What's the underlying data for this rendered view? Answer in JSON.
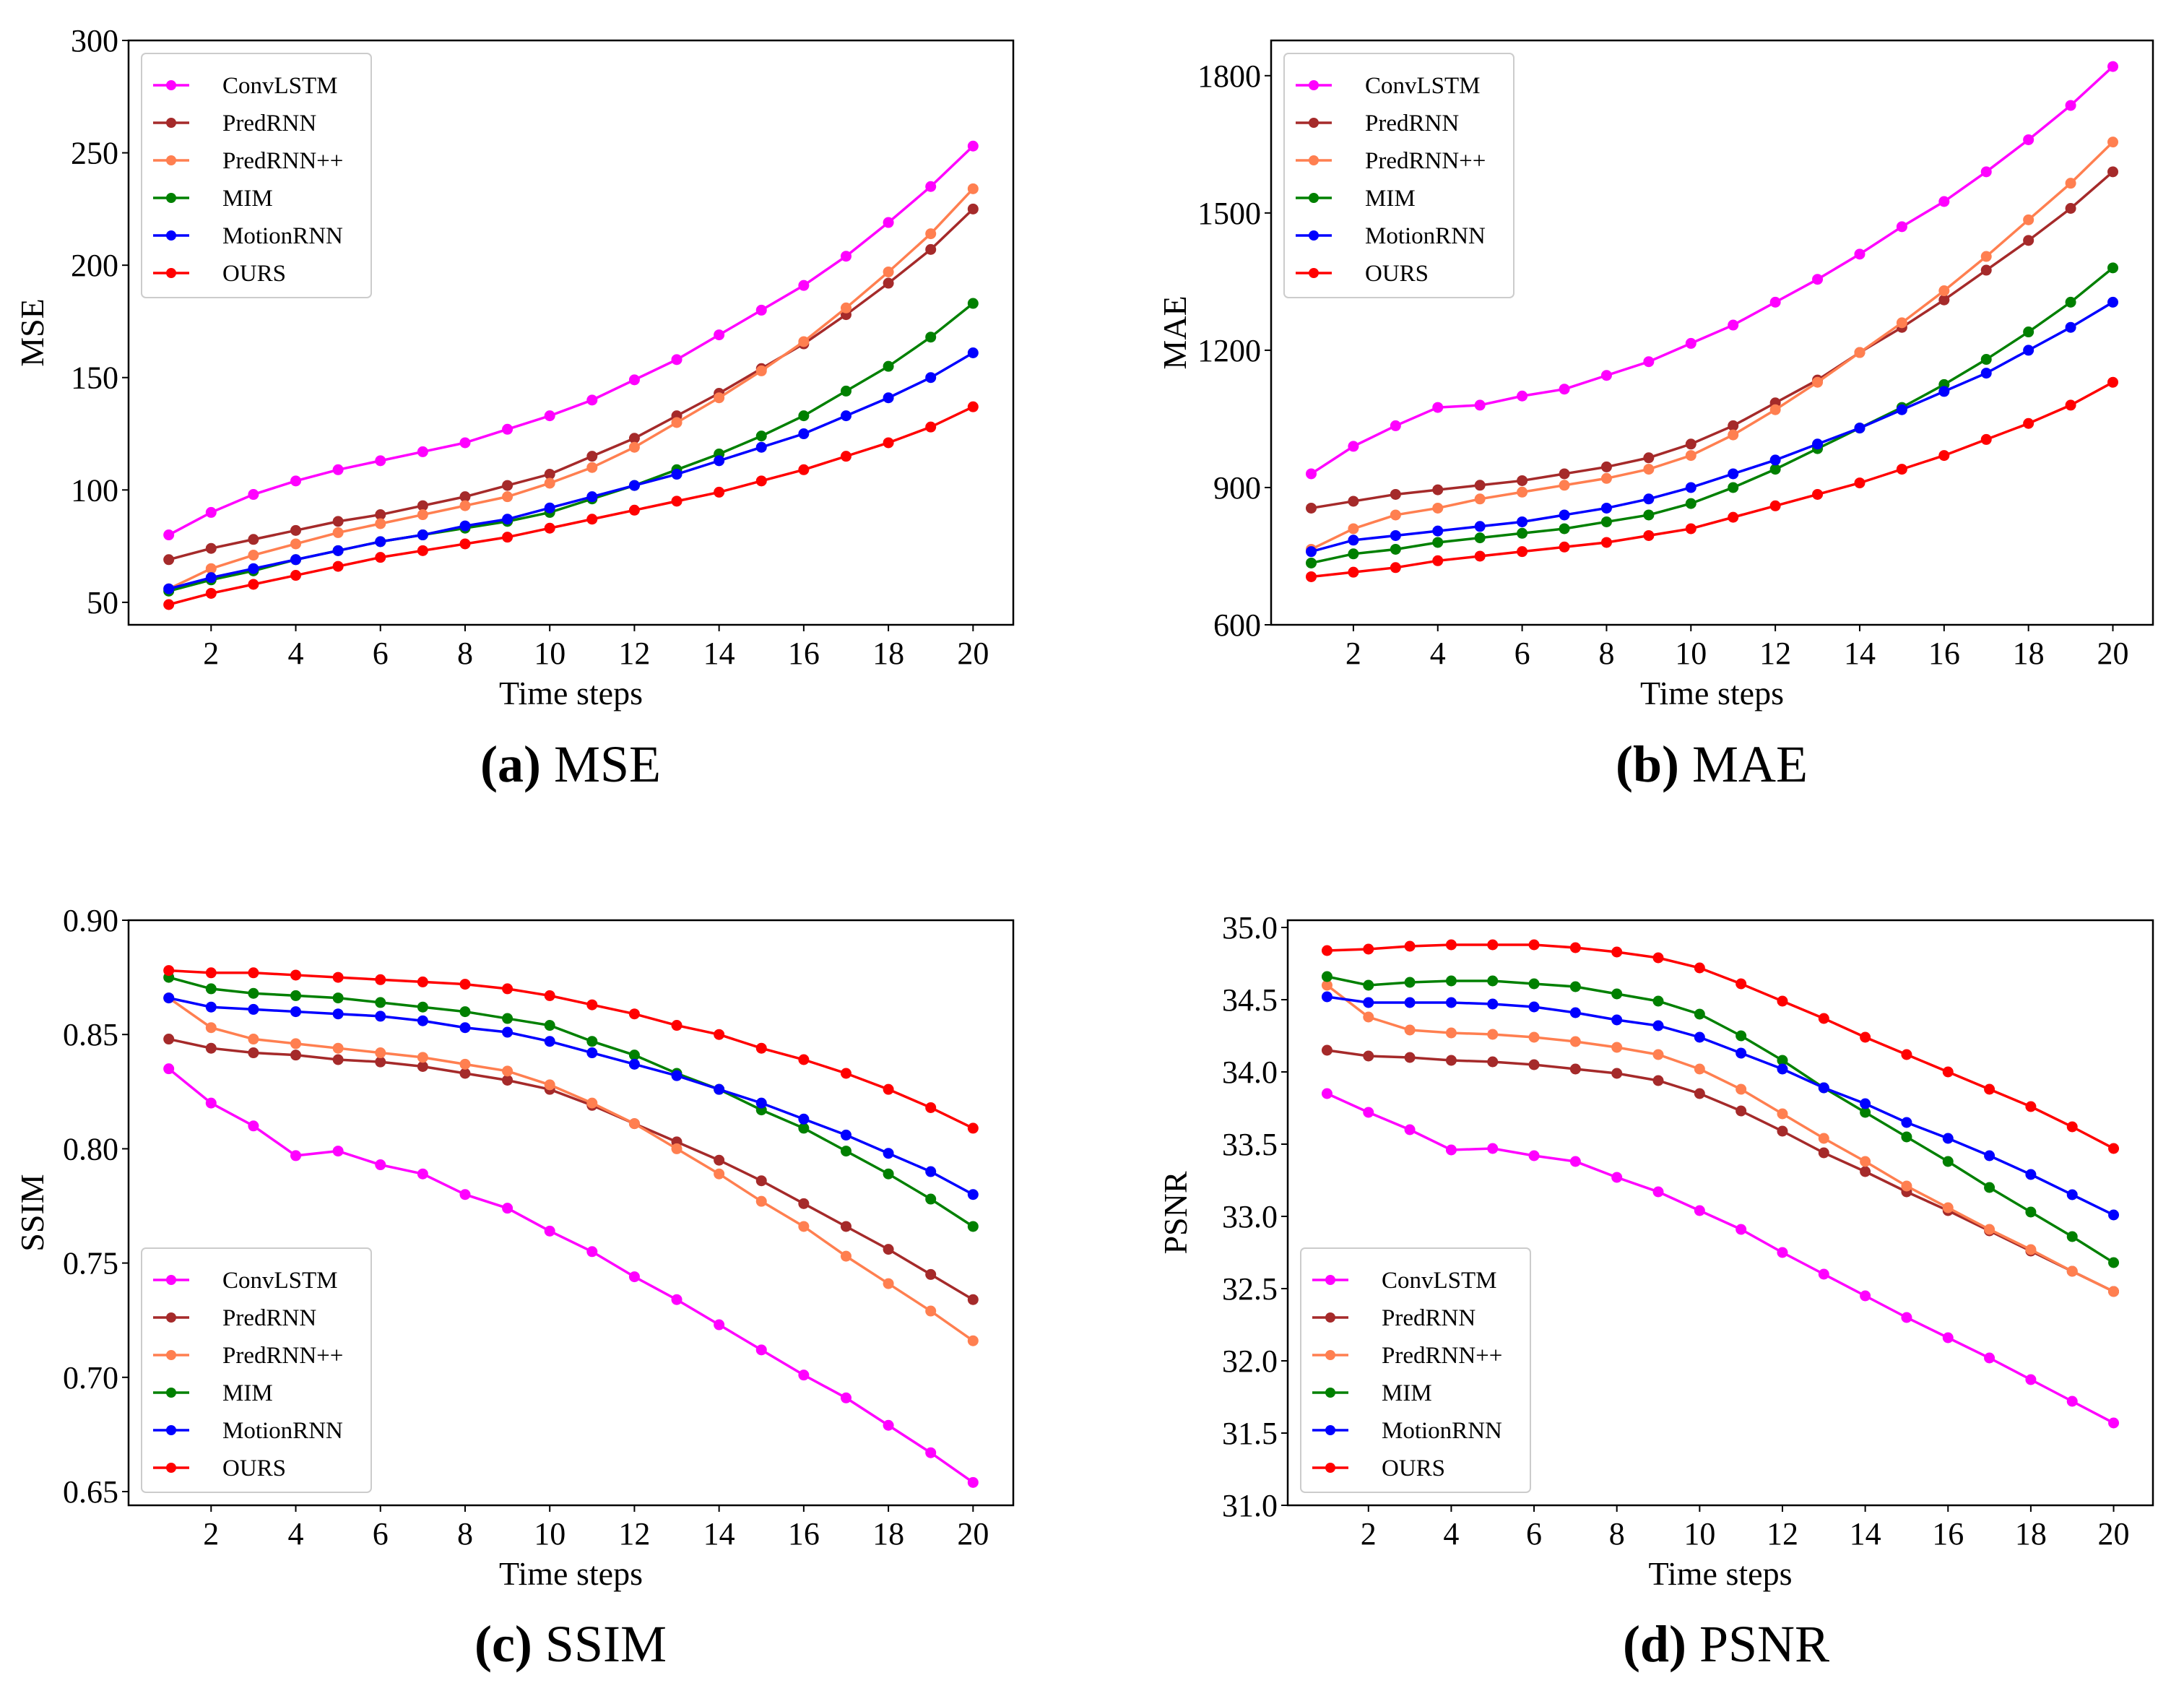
{
  "series_names": [
    "ConvLSTM",
    "PredRNN",
    "PredRNN++",
    "MIM",
    "MotionRNN",
    "OURS"
  ],
  "series_colors": [
    "#ff00ff",
    "#a52a2a",
    "#ff7f50",
    "#008000",
    "#0000ff",
    "#ff0000"
  ],
  "chart_data": [
    {
      "type": "line",
      "caption_letter": "(a)",
      "caption_text": "MSE",
      "xlabel": "Time steps",
      "ylabel": "MSE",
      "x": [
        1,
        2,
        3,
        4,
        5,
        6,
        7,
        8,
        9,
        10,
        11,
        12,
        13,
        14,
        15,
        16,
        17,
        18,
        19,
        20
      ],
      "xticks": [
        2,
        4,
        6,
        8,
        10,
        12,
        14,
        16,
        18,
        20
      ],
      "yticks": [
        50,
        100,
        150,
        200,
        250,
        300
      ],
      "ytick_labels": [
        "50",
        "100",
        "150",
        "200",
        "250",
        "300"
      ],
      "ylim": [
        40,
        300
      ],
      "xlim": [
        0.05,
        20.95
      ],
      "legend": "top-left",
      "grid": false,
      "series": [
        {
          "name": "ConvLSTM",
          "values": [
            80,
            90,
            98,
            104,
            109,
            113,
            117,
            121,
            127,
            133,
            140,
            149,
            158,
            169,
            180,
            191,
            204,
            219,
            235,
            253
          ]
        },
        {
          "name": "PredRNN",
          "values": [
            69,
            74,
            78,
            82,
            86,
            89,
            93,
            97,
            102,
            107,
            115,
            123,
            133,
            143,
            154,
            165,
            178,
            192,
            207,
            225
          ]
        },
        {
          "name": "PredRNN++",
          "values": [
            56,
            65,
            71,
            76,
            81,
            85,
            89,
            93,
            97,
            103,
            110,
            119,
            130,
            141,
            153,
            166,
            181,
            197,
            214,
            234
          ]
        },
        {
          "name": "MIM",
          "values": [
            55,
            60,
            64,
            69,
            73,
            77,
            80,
            83,
            86,
            90,
            96,
            102,
            109,
            116,
            124,
            133,
            144,
            155,
            168,
            183
          ]
        },
        {
          "name": "MotionRNN",
          "values": [
            56,
            61,
            65,
            69,
            73,
            77,
            80,
            84,
            87,
            92,
            97,
            102,
            107,
            113,
            119,
            125,
            133,
            141,
            150,
            161
          ]
        },
        {
          "name": "OURS",
          "values": [
            49,
            54,
            58,
            62,
            66,
            70,
            73,
            76,
            79,
            83,
            87,
            91,
            95,
            99,
            104,
            109,
            115,
            121,
            128,
            137
          ]
        }
      ]
    },
    {
      "type": "line",
      "caption_letter": "(b)",
      "caption_text": "MAE",
      "xlabel": "Time steps",
      "ylabel": "MAE",
      "x": [
        1,
        2,
        3,
        4,
        5,
        6,
        7,
        8,
        9,
        10,
        11,
        12,
        13,
        14,
        15,
        16,
        17,
        18,
        19,
        20
      ],
      "xticks": [
        2,
        4,
        6,
        8,
        10,
        12,
        14,
        16,
        18,
        20
      ],
      "yticks": [
        600,
        900,
        1200,
        1500,
        1800
      ],
      "ytick_labels": [
        "600",
        "900",
        "1200",
        "1500",
        "1800"
      ],
      "ylim": [
        600,
        1877
      ],
      "xlim": [
        0.05,
        20.95
      ],
      "legend": "top-left",
      "grid": false,
      "series": [
        {
          "name": "ConvLSTM",
          "values": [
            930,
            990,
            1035,
            1075,
            1080,
            1100,
            1115,
            1145,
            1175,
            1215,
            1255,
            1305,
            1355,
            1410,
            1470,
            1525,
            1590,
            1660,
            1735,
            1820
          ]
        },
        {
          "name": "PredRNN",
          "values": [
            855,
            870,
            885,
            895,
            905,
            915,
            930,
            945,
            965,
            995,
            1035,
            1085,
            1135,
            1195,
            1250,
            1310,
            1375,
            1440,
            1510,
            1590
          ]
        },
        {
          "name": "PredRNN++",
          "values": [
            765,
            810,
            840,
            855,
            875,
            890,
            905,
            920,
            940,
            970,
            1015,
            1070,
            1130,
            1195,
            1260,
            1330,
            1405,
            1485,
            1565,
            1655
          ]
        },
        {
          "name": "MIM",
          "values": [
            735,
            755,
            765,
            780,
            790,
            800,
            810,
            825,
            840,
            865,
            900,
            940,
            985,
            1030,
            1075,
            1125,
            1180,
            1240,
            1305,
            1380
          ]
        },
        {
          "name": "MotionRNN",
          "values": [
            760,
            785,
            795,
            805,
            815,
            825,
            840,
            855,
            875,
            900,
            930,
            960,
            995,
            1030,
            1070,
            1110,
            1150,
            1200,
            1250,
            1305
          ]
        },
        {
          "name": "OURS",
          "values": [
            705,
            715,
            725,
            740,
            750,
            760,
            770,
            780,
            795,
            810,
            835,
            860,
            885,
            910,
            940,
            970,
            1005,
            1040,
            1080,
            1130
          ]
        }
      ]
    },
    {
      "type": "line",
      "caption_letter": "(c)",
      "caption_text": "SSIM",
      "xlabel": "Time steps",
      "ylabel": "SSIM",
      "x": [
        1,
        2,
        3,
        4,
        5,
        6,
        7,
        8,
        9,
        10,
        11,
        12,
        13,
        14,
        15,
        16,
        17,
        18,
        19,
        20
      ],
      "xticks": [
        2,
        4,
        6,
        8,
        10,
        12,
        14,
        16,
        18,
        20
      ],
      "yticks": [
        0.65,
        0.7,
        0.75,
        0.8,
        0.85,
        0.9
      ],
      "ytick_labels": [
        "0.65",
        "0.70",
        "0.75",
        "0.80",
        "0.85",
        "0.90"
      ],
      "ylim": [
        0.644,
        0.9
      ],
      "xlim": [
        0.05,
        20.95
      ],
      "legend": "bottom-left",
      "grid": false,
      "series": [
        {
          "name": "ConvLSTM",
          "values": [
            0.835,
            0.82,
            0.81,
            0.797,
            0.799,
            0.793,
            0.789,
            0.78,
            0.774,
            0.764,
            0.755,
            0.744,
            0.734,
            0.723,
            0.712,
            0.701,
            0.691,
            0.679,
            0.667,
            0.654
          ]
        },
        {
          "name": "PredRNN",
          "values": [
            0.848,
            0.844,
            0.842,
            0.841,
            0.839,
            0.838,
            0.836,
            0.833,
            0.83,
            0.826,
            0.819,
            0.811,
            0.803,
            0.795,
            0.786,
            0.776,
            0.766,
            0.756,
            0.745,
            0.734
          ]
        },
        {
          "name": "PredRNN++",
          "values": [
            0.866,
            0.853,
            0.848,
            0.846,
            0.844,
            0.842,
            0.84,
            0.837,
            0.834,
            0.828,
            0.82,
            0.811,
            0.8,
            0.789,
            0.777,
            0.766,
            0.753,
            0.741,
            0.729,
            0.716
          ]
        },
        {
          "name": "MIM",
          "values": [
            0.875,
            0.87,
            0.868,
            0.867,
            0.866,
            0.864,
            0.862,
            0.86,
            0.857,
            0.854,
            0.847,
            0.841,
            0.833,
            0.826,
            0.817,
            0.809,
            0.799,
            0.789,
            0.778,
            0.766
          ]
        },
        {
          "name": "MotionRNN",
          "values": [
            0.866,
            0.862,
            0.861,
            0.86,
            0.859,
            0.858,
            0.856,
            0.853,
            0.851,
            0.847,
            0.842,
            0.837,
            0.832,
            0.826,
            0.82,
            0.813,
            0.806,
            0.798,
            0.79,
            0.78
          ]
        },
        {
          "name": "OURS",
          "values": [
            0.878,
            0.877,
            0.877,
            0.876,
            0.875,
            0.874,
            0.873,
            0.872,
            0.87,
            0.867,
            0.863,
            0.859,
            0.854,
            0.85,
            0.844,
            0.839,
            0.833,
            0.826,
            0.818,
            0.809
          ]
        }
      ]
    },
    {
      "type": "line",
      "caption_letter": "(d)",
      "caption_text": "PSNR",
      "xlabel": "Time steps",
      "ylabel": "PSNR",
      "x": [
        1,
        2,
        3,
        4,
        5,
        6,
        7,
        8,
        9,
        10,
        11,
        12,
        13,
        14,
        15,
        16,
        17,
        18,
        19,
        20
      ],
      "xticks": [
        2,
        4,
        6,
        8,
        10,
        12,
        14,
        16,
        18,
        20
      ],
      "yticks": [
        31.0,
        31.5,
        32.0,
        32.5,
        33.0,
        33.5,
        34.0,
        34.5,
        35.0
      ],
      "ytick_labels": [
        "31.0",
        "31.5",
        "32.0",
        "32.5",
        "33.0",
        "33.5",
        "34.0",
        "34.5",
        "35.0"
      ],
      "ylim": [
        31.0,
        35.05
      ],
      "xlim": [
        0.05,
        20.95
      ],
      "legend": "bottom-left",
      "grid": false,
      "series": [
        {
          "name": "ConvLSTM",
          "values": [
            33.85,
            33.72,
            33.6,
            33.46,
            33.47,
            33.42,
            33.38,
            33.27,
            33.17,
            33.04,
            32.91,
            32.75,
            32.6,
            32.45,
            32.3,
            32.16,
            32.02,
            31.87,
            31.72,
            31.57
          ]
        },
        {
          "name": "PredRNN",
          "values": [
            34.15,
            34.11,
            34.1,
            34.08,
            34.07,
            34.05,
            34.02,
            33.99,
            33.94,
            33.85,
            33.73,
            33.59,
            33.44,
            33.31,
            33.17,
            33.04,
            32.9,
            32.76,
            32.62,
            32.48
          ]
        },
        {
          "name": "PredRNN++",
          "values": [
            34.6,
            34.38,
            34.29,
            34.27,
            34.26,
            34.24,
            34.21,
            34.17,
            34.12,
            34.02,
            33.88,
            33.71,
            33.54,
            33.38,
            33.21,
            33.06,
            32.91,
            32.77,
            32.62,
            32.48
          ]
        },
        {
          "name": "MIM",
          "values": [
            34.66,
            34.6,
            34.62,
            34.63,
            34.63,
            34.61,
            34.59,
            34.54,
            34.49,
            34.4,
            34.25,
            34.08,
            33.89,
            33.72,
            33.55,
            33.38,
            33.2,
            33.03,
            32.86,
            32.68
          ]
        },
        {
          "name": "MotionRNN",
          "values": [
            34.52,
            34.48,
            34.48,
            34.48,
            34.47,
            34.45,
            34.41,
            34.36,
            34.32,
            34.24,
            34.13,
            34.02,
            33.89,
            33.78,
            33.65,
            33.54,
            33.42,
            33.29,
            33.15,
            33.01
          ]
        },
        {
          "name": "OURS",
          "values": [
            34.84,
            34.85,
            34.87,
            34.88,
            34.88,
            34.88,
            34.86,
            34.83,
            34.79,
            34.72,
            34.61,
            34.49,
            34.37,
            34.24,
            34.12,
            34.0,
            33.88,
            33.76,
            33.62,
            33.47
          ]
        }
      ]
    }
  ]
}
